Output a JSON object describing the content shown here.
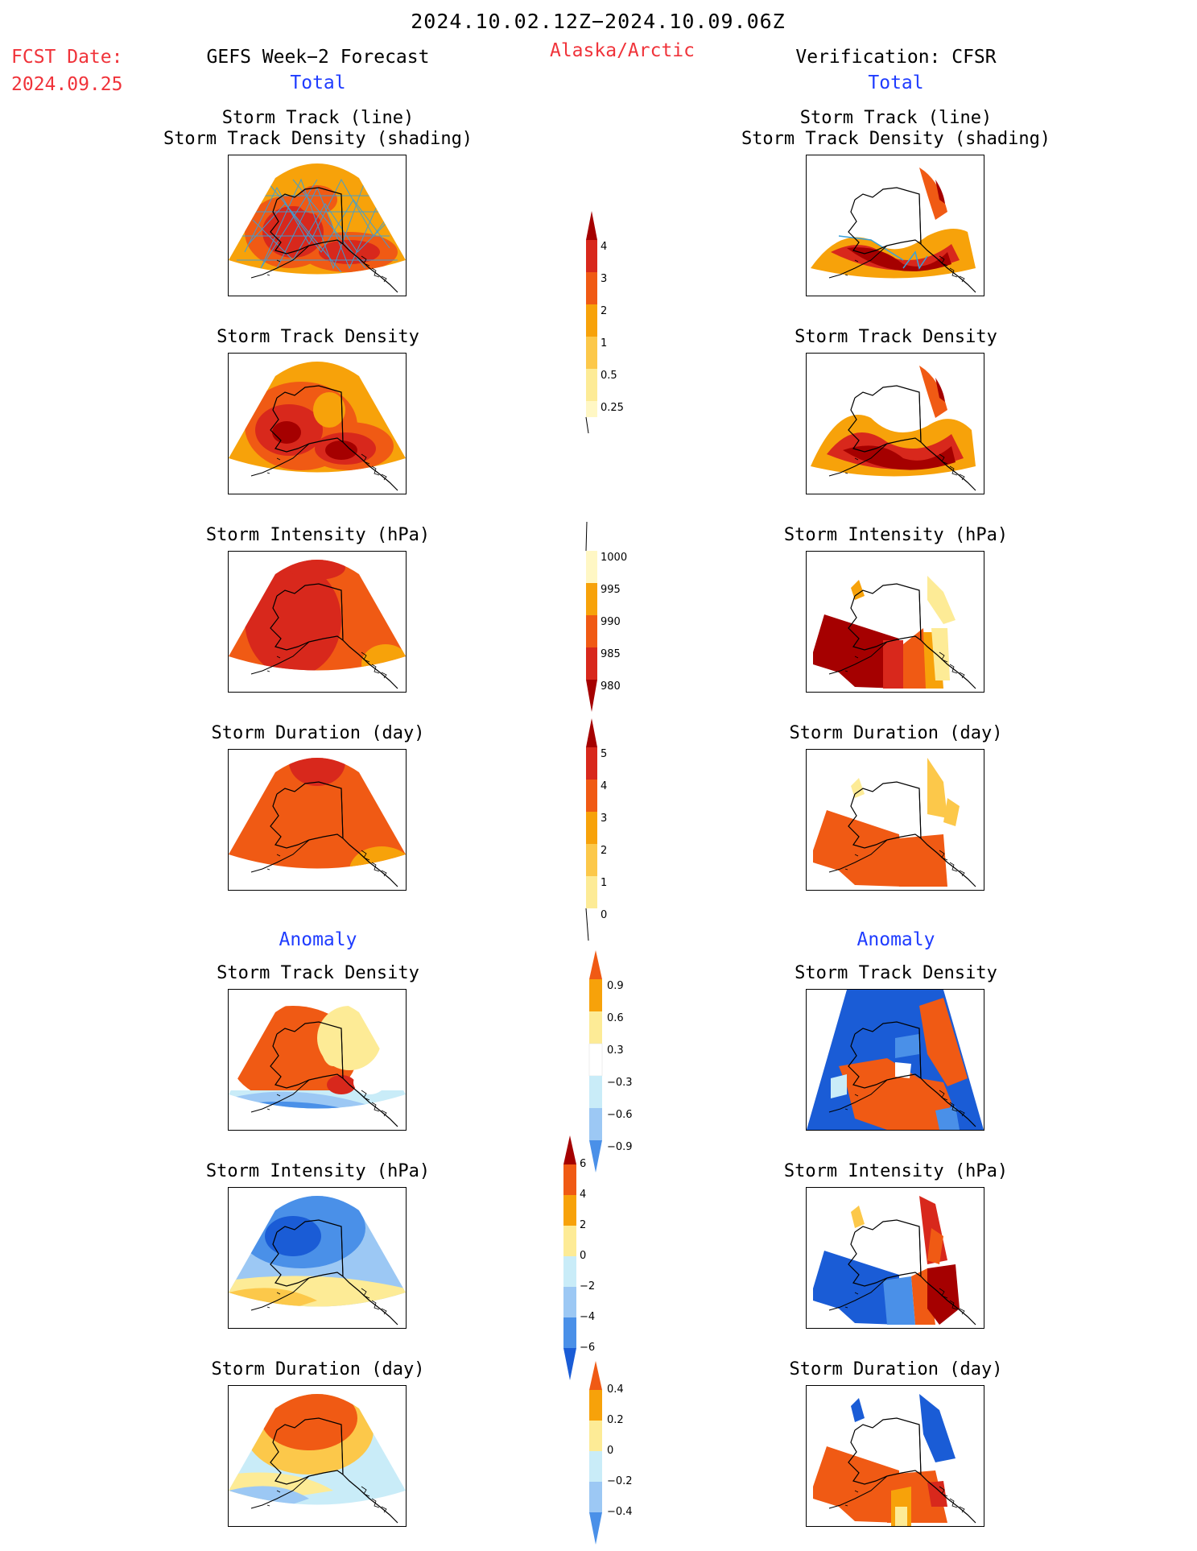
{
  "header": {
    "date_range": "2024.10.02.12Z−2024.10.09.06Z",
    "fcst_label": "FCST Date:",
    "fcst_value": "2024.09.25",
    "left_title": "GEFS Week−2 Forecast",
    "region": "Alaska/Arctic",
    "right_title": "Verification: CFSR"
  },
  "sections": {
    "total": "Total",
    "anomaly": "Anomaly"
  },
  "panel_titles": {
    "track_line": "Storm Track (line)",
    "track_shading": "Storm Track Density (shading)",
    "density": "Storm Track Density",
    "intensity": "Storm Intensity (hPa)",
    "duration": "Storm Duration (day)"
  },
  "colorbars": {
    "density": [
      "4",
      "3",
      "2",
      "1",
      "0.5",
      "0.25"
    ],
    "intensity": [
      "1000",
      "995",
      "990",
      "985",
      "980"
    ],
    "duration": [
      "5",
      "4",
      "3",
      "2",
      "1",
      "0"
    ],
    "anom_density": [
      "0.9",
      "0.6",
      "0.3",
      "−0.3",
      "−0.6",
      "−0.9"
    ],
    "anom_intensity": [
      "6",
      "4",
      "2",
      "0",
      "−2",
      "−4",
      "−6"
    ],
    "anom_duration": [
      "0.4",
      "0.2",
      "0",
      "−0.2",
      "−0.4"
    ]
  },
  "colors": {
    "dark_red": "#a50000",
    "red": "#d8281c",
    "orange_red": "#f05a14",
    "orange": "#f7a20a",
    "light_orange": "#fcc84a",
    "yellow": "#fdeb96",
    "pale_yellow": "#fff7c4",
    "blue_dark": "#1a5cd6",
    "blue": "#4a90e8",
    "blue_light": "#9cc8f4",
    "blue_pale": "#c9ecf8",
    "track_blue": "#3aa0d8"
  }
}
